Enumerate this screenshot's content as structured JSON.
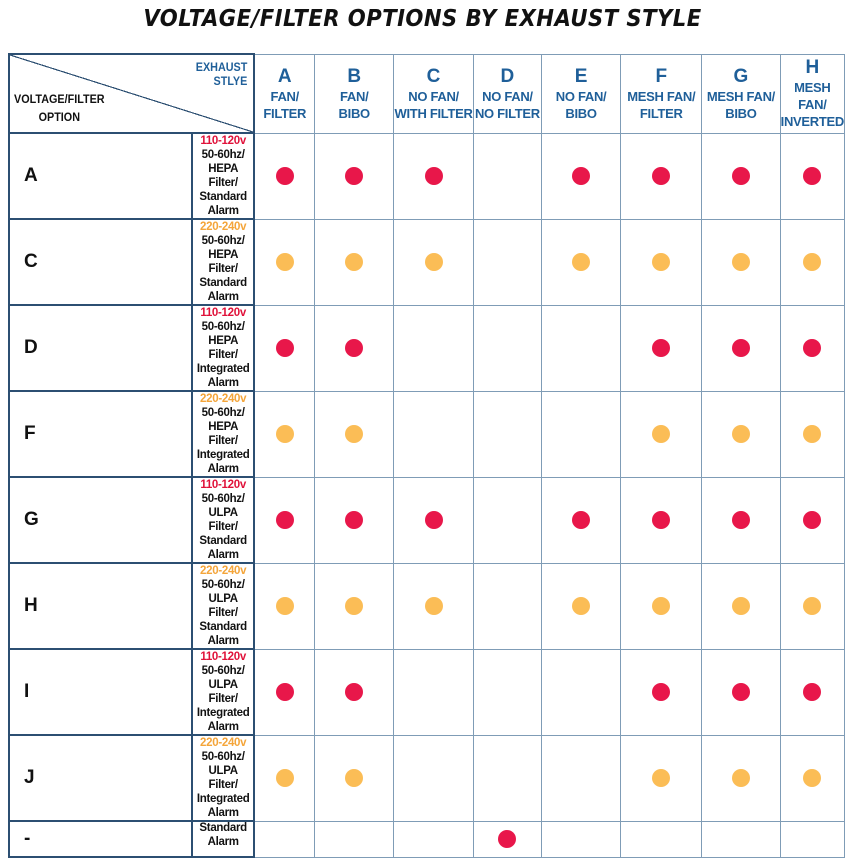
{
  "title": "VOLTAGE/FILTER OPTIONS BY EXHAUST STYLE",
  "colors": {
    "red": "#e8174a",
    "orange": "#fbbd56",
    "header_blue": "#1f5f99",
    "border": "#2c4f72"
  },
  "corner": {
    "top_line1": "EXHAUST",
    "top_line2": "STLYE",
    "bottom_line1": "VOLTAGE/FILTER",
    "bottom_line2": "OPTION"
  },
  "exhaust_styles": [
    {
      "letter": "A",
      "name": "FAN/\nFILTER"
    },
    {
      "letter": "B",
      "name": "FAN/\nBIBO"
    },
    {
      "letter": "C",
      "name": "NO FAN/\nWITH FILTER"
    },
    {
      "letter": "D",
      "name": "NO FAN/\nNO FILTER"
    },
    {
      "letter": "E",
      "name": "NO FAN/\nBIBO"
    },
    {
      "letter": "F",
      "name": "MESH FAN/\nFILTER"
    },
    {
      "letter": "G",
      "name": "MESH FAN/\nBIBO"
    },
    {
      "letter": "H",
      "name": "MESH FAN/\nINVERTED"
    }
  ],
  "rows": [
    {
      "letter": "A",
      "voltage": "110-120v",
      "voltage_color": "red",
      "freq": "50-60hz/",
      "desc": "HEPA Filter/ Standard Alarm",
      "dots": [
        "red",
        "red",
        "red",
        "",
        "red",
        "red",
        "red",
        "red"
      ]
    },
    {
      "letter": "C",
      "voltage": "220-240v",
      "voltage_color": "orange",
      "freq": "50-60hz/",
      "desc": "HEPA Filter/ Standard Alarm",
      "dots": [
        "orange",
        "orange",
        "orange",
        "",
        "orange",
        "orange",
        "orange",
        "orange"
      ]
    },
    {
      "letter": "D",
      "voltage": "110-120v",
      "voltage_color": "red",
      "freq": "50-60hz/",
      "desc": "HEPA Filter/ Integrated Alarm",
      "dots": [
        "red",
        "red",
        "",
        "",
        "",
        "red",
        "red",
        "red"
      ]
    },
    {
      "letter": "F",
      "voltage": "220-240v",
      "voltage_color": "orange",
      "freq": "50-60hz/",
      "desc": "HEPA Filter/ Integrated Alarm",
      "dots": [
        "orange",
        "orange",
        "",
        "",
        "",
        "orange",
        "orange",
        "orange"
      ]
    },
    {
      "letter": "G",
      "voltage": "110-120v",
      "voltage_color": "red",
      "freq": "50-60hz/",
      "desc": "ULPA Filter/ Standard Alarm",
      "dots": [
        "red",
        "red",
        "red",
        "",
        "red",
        "red",
        "red",
        "red"
      ]
    },
    {
      "letter": "H",
      "voltage": "220-240v",
      "voltage_color": "orange",
      "freq": "50-60hz/",
      "desc": "ULPA Filter/ Standard Alarm",
      "dots": [
        "orange",
        "orange",
        "orange",
        "",
        "orange",
        "orange",
        "orange",
        "orange"
      ]
    },
    {
      "letter": "I",
      "voltage": "110-120v",
      "voltage_color": "red",
      "freq": "50-60hz/",
      "desc": "ULPA Filter/ Integrated Alarm",
      "dots": [
        "red",
        "red",
        "",
        "",
        "",
        "red",
        "red",
        "red"
      ]
    },
    {
      "letter": "J",
      "voltage": "220-240v",
      "voltage_color": "orange",
      "freq": "50-60hz/",
      "desc": "ULPA Filter/ Integrated Alarm",
      "dots": [
        "orange",
        "orange",
        "",
        "",
        "",
        "orange",
        "orange",
        "orange"
      ]
    },
    {
      "letter": "-",
      "voltage": "",
      "voltage_color": "",
      "freq": "",
      "desc": "Standard Alarm",
      "dots": [
        "",
        "",
        "",
        "red",
        "",
        "",
        "",
        ""
      ]
    }
  ]
}
